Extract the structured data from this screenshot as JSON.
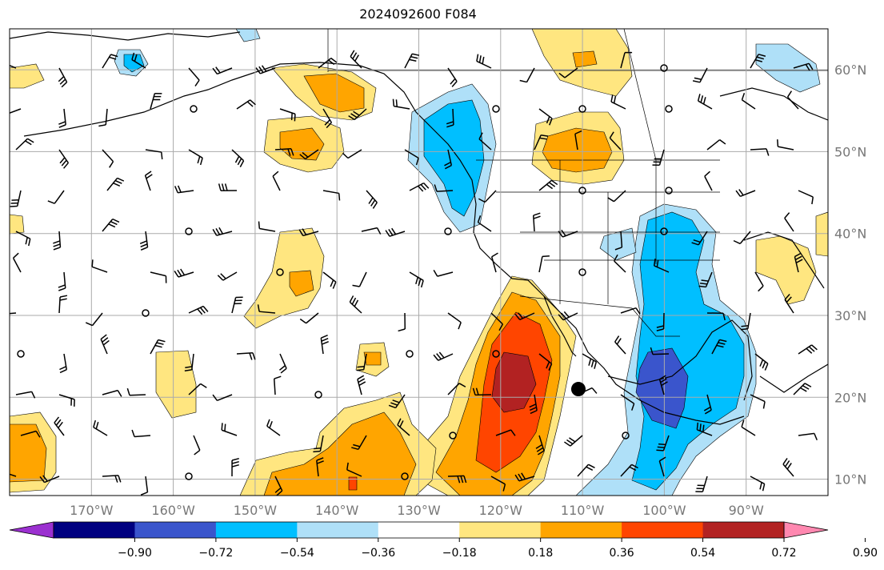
{
  "title": "2024092600 F084",
  "map": {
    "lon_labels": [
      "170°W",
      "160°W",
      "150°W",
      "140°W",
      "130°W",
      "120°W",
      "110°W",
      "100°W",
      "90°W"
    ],
    "lon_values": [
      -170,
      -160,
      -150,
      -140,
      -130,
      -120,
      -110,
      -100,
      -90
    ],
    "lat_labels": [
      "60°N",
      "50°N",
      "40°N",
      "30°N",
      "20°N",
      "10°N"
    ],
    "lat_values": [
      60,
      50,
      40,
      30,
      20,
      10
    ],
    "lon_range": [
      -180,
      -80
    ],
    "lat_range": [
      8,
      65
    ],
    "grid": true,
    "marker": {
      "lon": -110.5,
      "lat": 21.0
    }
  },
  "colorbar": {
    "labels": [
      "−0.90",
      "−0.72",
      "−0.54",
      "−0.36",
      "−0.18",
      "0.18",
      "0.36",
      "0.54",
      "0.72",
      "0.90"
    ],
    "colors": [
      "#9b30d0",
      "#000080",
      "#3a55cc",
      "#00bfff",
      "#afe0f8",
      "#ffffff",
      "#ffe680",
      "#ffa500",
      "#ff4500",
      "#b22222",
      "#ff88b0"
    ]
  },
  "fill_colors": {
    "neg_light": "#afe0f8",
    "neg_mid": "#00bfff",
    "neg_dark": "#3a55cc",
    "pos_light": "#ffe680",
    "pos_mid": "#ffa500",
    "pos_strong": "#ff4500",
    "pos_dark": "#b22222"
  }
}
